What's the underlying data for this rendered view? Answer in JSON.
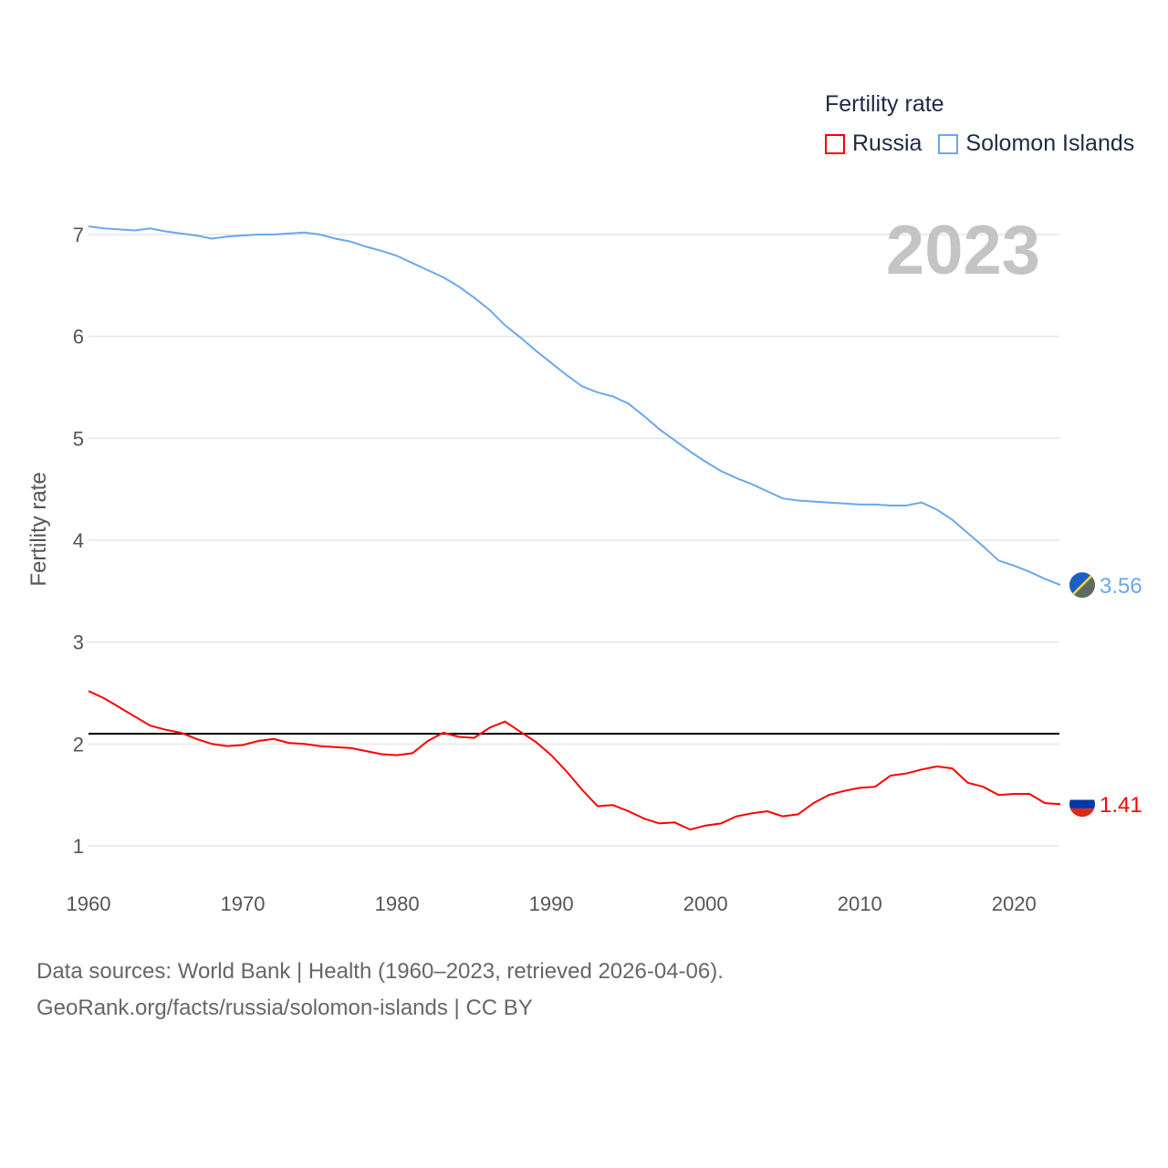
{
  "legend": {
    "title": "Fertility rate",
    "items": [
      "Russia",
      "Solomon Islands"
    ]
  },
  "colors": {
    "Russia": "#ff0000",
    "Solomon Islands": "#6aa8ec",
    "reference": "#000000"
  },
  "year_label": "2023",
  "footer": {
    "line1": "Data sources: World Bank | Health (1960–2023, retrieved 2026-04-06).",
    "line2": "GeoRank.org/facts/russia/solomon-islands | CC BY"
  },
  "chart_data": {
    "type": "line",
    "title": "Fertility rate",
    "xlabel": "",
    "ylabel": "Fertility rate",
    "xlim": [
      1960,
      2023
    ],
    "ylim": [
      0.7,
      7.1
    ],
    "xticks": [
      "1960",
      "1970",
      "1980",
      "1990",
      "2000",
      "2010",
      "2020"
    ],
    "yticks": [
      "1",
      "2",
      "3",
      "4",
      "5",
      "6",
      "7"
    ],
    "grid": true,
    "legend_position": "top-right",
    "reference_line": 2.1,
    "x_start": 1960,
    "series": [
      {
        "name": "Russia",
        "end_label": "1.41",
        "values": [
          2.52,
          2.45,
          2.36,
          2.27,
          2.18,
          2.14,
          2.11,
          2.05,
          2.0,
          1.98,
          1.99,
          2.03,
          2.05,
          2.01,
          2.0,
          1.98,
          1.97,
          1.96,
          1.93,
          1.9,
          1.89,
          1.91,
          2.03,
          2.11,
          2.07,
          2.06,
          2.16,
          2.22,
          2.12,
          2.02,
          1.89,
          1.73,
          1.55,
          1.39,
          1.4,
          1.34,
          1.27,
          1.22,
          1.23,
          1.16,
          1.2,
          1.22,
          1.29,
          1.32,
          1.34,
          1.29,
          1.31,
          1.42,
          1.5,
          1.54,
          1.57,
          1.58,
          1.69,
          1.71,
          1.75,
          1.78,
          1.76,
          1.62,
          1.58,
          1.5,
          1.51,
          1.51,
          1.42,
          1.41
        ]
      },
      {
        "name": "Solomon Islands",
        "end_label": "3.56",
        "values": [
          7.08,
          7.06,
          7.05,
          7.04,
          7.06,
          7.03,
          7.01,
          6.99,
          6.96,
          6.98,
          6.99,
          7.0,
          7.0,
          7.01,
          7.02,
          7.0,
          6.96,
          6.93,
          6.88,
          6.84,
          6.79,
          6.72,
          6.65,
          6.58,
          6.49,
          6.38,
          6.26,
          6.11,
          5.99,
          5.86,
          5.74,
          5.62,
          5.51,
          5.45,
          5.41,
          5.34,
          5.22,
          5.09,
          4.98,
          4.87,
          4.77,
          4.68,
          4.61,
          4.55,
          4.48,
          4.41,
          4.39,
          4.38,
          4.37,
          4.36,
          4.35,
          4.35,
          4.34,
          4.34,
          4.37,
          4.3,
          4.2,
          4.07,
          3.94,
          3.8,
          3.75,
          3.69,
          3.62,
          3.56
        ]
      }
    ]
  }
}
